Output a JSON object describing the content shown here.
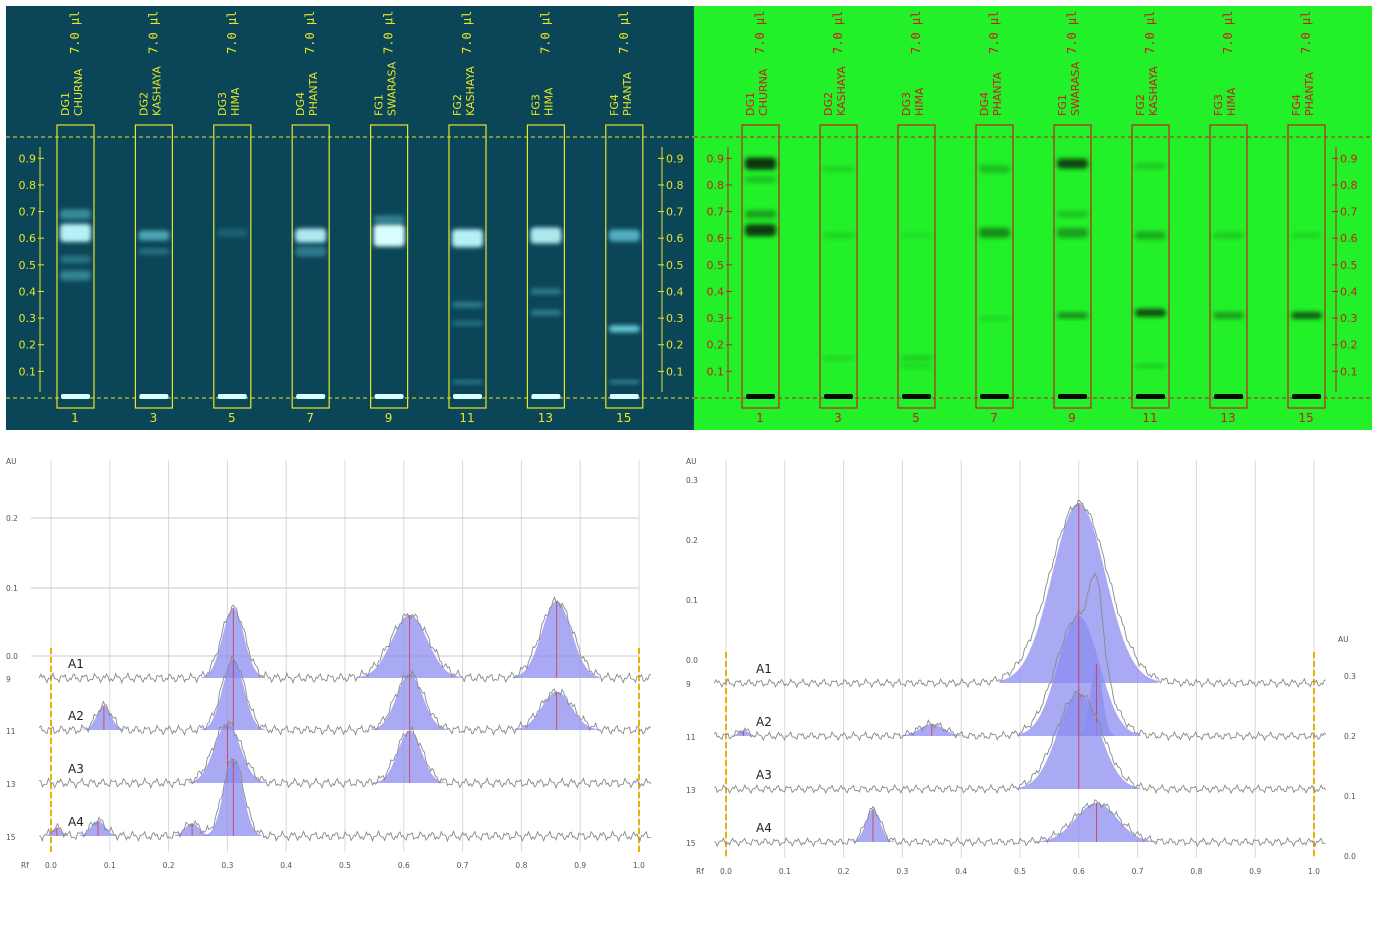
{
  "plate_uv366": {
    "volume": "7.0 µl",
    "lanes": [
      {
        "code": "DG1",
        "name": "CHURNA",
        "track": "1"
      },
      {
        "code": "DG2",
        "name": "KASHAYA",
        "track": "3"
      },
      {
        "code": "DG3",
        "name": "HIMA",
        "track": "5"
      },
      {
        "code": "DG4",
        "name": "PHANTA",
        "track": "7"
      },
      {
        "code": "FG1",
        "name": "SWARASA",
        "track": "9"
      },
      {
        "code": "FG2",
        "name": "KASHAYA",
        "track": "11"
      },
      {
        "code": "FG3",
        "name": "HIMA",
        "track": "13"
      },
      {
        "code": "FG4",
        "name": "PHANTA",
        "track": "15"
      }
    ],
    "rf_scale": [
      "0.9",
      "0.8",
      "0.7",
      "0.6",
      "0.5",
      "0.4",
      "0.3",
      "0.2",
      "0.1"
    ],
    "colors": {
      "background": "#0b4658",
      "frame": "#e6e628",
      "band": "#7ff2ff"
    }
  },
  "plate_uv254": {
    "volume": "7.0 µl",
    "lanes": [
      {
        "code": "DG1",
        "name": "CHURNA",
        "track": "1"
      },
      {
        "code": "DG2",
        "name": "KASHAYA",
        "track": "3"
      },
      {
        "code": "DG3",
        "name": "HIMA",
        "track": "5"
      },
      {
        "code": "DG4",
        "name": "PHANTA",
        "track": "7"
      },
      {
        "code": "FG1",
        "name": "SWARASA",
        "track": "9"
      },
      {
        "code": "FG2",
        "name": "KASHAYA",
        "track": "11"
      },
      {
        "code": "FG3",
        "name": "HIMA",
        "track": "13"
      },
      {
        "code": "FG4",
        "name": "PHANTA",
        "track": "15"
      }
    ],
    "rf_scale": [
      "0.9",
      "0.8",
      "0.7",
      "0.6",
      "0.5",
      "0.4",
      "0.3",
      "0.2",
      "0.1"
    ],
    "colors": {
      "background": "#22f028",
      "frame": "#c81e1e",
      "band": "#0a0a0a"
    }
  },
  "chart_data": [
    {
      "type": "line",
      "panel": "left",
      "ylabel": "AU",
      "y_ticks": [
        "0.2",
        "0.1",
        "0.0"
      ],
      "x_label": "Rf",
      "x_ticks": [
        "0.0",
        "0.1",
        "0.2",
        "0.3",
        "0.4",
        "0.5",
        "0.6",
        "0.7",
        "0.8",
        "0.9",
        "1.0"
      ],
      "xlim": [
        0,
        1
      ],
      "track_numbers": [
        "9",
        "11",
        "13",
        "15"
      ],
      "series": [
        {
          "name": "A1",
          "peaks": [
            {
              "rf": 0.31,
              "h": 0.1,
              "w": 0.018
            },
            {
              "rf": 0.61,
              "h": 0.09,
              "w": 0.03
            },
            {
              "rf": 0.86,
              "h": 0.11,
              "w": 0.025
            }
          ]
        },
        {
          "name": "A2",
          "peaks": [
            {
              "rf": 0.09,
              "h": 0.035,
              "w": 0.012
            },
            {
              "rf": 0.31,
              "h": 0.1,
              "w": 0.018
            },
            {
              "rf": 0.61,
              "h": 0.08,
              "w": 0.022
            },
            {
              "rf": 0.86,
              "h": 0.055,
              "w": 0.025
            }
          ]
        },
        {
          "name": "A3",
          "peaks": [
            {
              "rf": 0.3,
              "h": 0.085,
              "w": 0.022
            },
            {
              "rf": 0.61,
              "h": 0.075,
              "w": 0.02
            }
          ]
        },
        {
          "name": "A4",
          "peaks": [
            {
              "rf": 0.01,
              "h": 0.012,
              "w": 0.008
            },
            {
              "rf": 0.08,
              "h": 0.022,
              "w": 0.012
            },
            {
              "rf": 0.24,
              "h": 0.018,
              "w": 0.012
            },
            {
              "rf": 0.31,
              "h": 0.11,
              "w": 0.016
            }
          ]
        }
      ],
      "colors": {
        "peak_fill": "#8c8cf0",
        "line": "#8a8a8a",
        "marker": "#e6b400",
        "peak_line": "#d23a3a"
      }
    },
    {
      "type": "line",
      "panel": "right",
      "ylabel": "AU",
      "y_ticks": [
        "0.3",
        "0.2",
        "0.1",
        "0.0"
      ],
      "right_axis_label": "AU",
      "right_y_ticks": [
        "0.3",
        "0.2",
        "0.1",
        "0.0"
      ],
      "x_label": "Rf",
      "x_ticks": [
        "0.0",
        "0.1",
        "0.2",
        "0.3",
        "0.4",
        "0.5",
        "0.6",
        "0.7",
        "0.8",
        "0.9",
        "1.0"
      ],
      "xlim": [
        0,
        1
      ],
      "track_numbers": [
        "9",
        "11",
        "13",
        "15"
      ],
      "series": [
        {
          "name": "A1",
          "peaks": [
            {
              "rf": 0.6,
              "h": 0.3,
              "w": 0.045
            }
          ]
        },
        {
          "name": "A2",
          "peaks": [
            {
              "rf": 0.03,
              "h": 0.01,
              "w": 0.008
            },
            {
              "rf": 0.35,
              "h": 0.02,
              "w": 0.02
            },
            {
              "rf": 0.6,
              "h": 0.2,
              "w": 0.035
            },
            {
              "rf": 0.63,
              "h": 0.12,
              "w": 0.01
            }
          ]
        },
        {
          "name": "A3",
          "peaks": [
            {
              "rf": 0.6,
              "h": 0.16,
              "w": 0.035
            }
          ]
        },
        {
          "name": "A4",
          "peaks": [
            {
              "rf": 0.25,
              "h": 0.055,
              "w": 0.012
            },
            {
              "rf": 0.63,
              "h": 0.065,
              "w": 0.035
            }
          ]
        }
      ],
      "colors": {
        "peak_fill": "#8c8cf0",
        "line": "#8a8a8a",
        "marker": "#e6b400",
        "peak_line": "#d23a3a"
      }
    }
  ]
}
